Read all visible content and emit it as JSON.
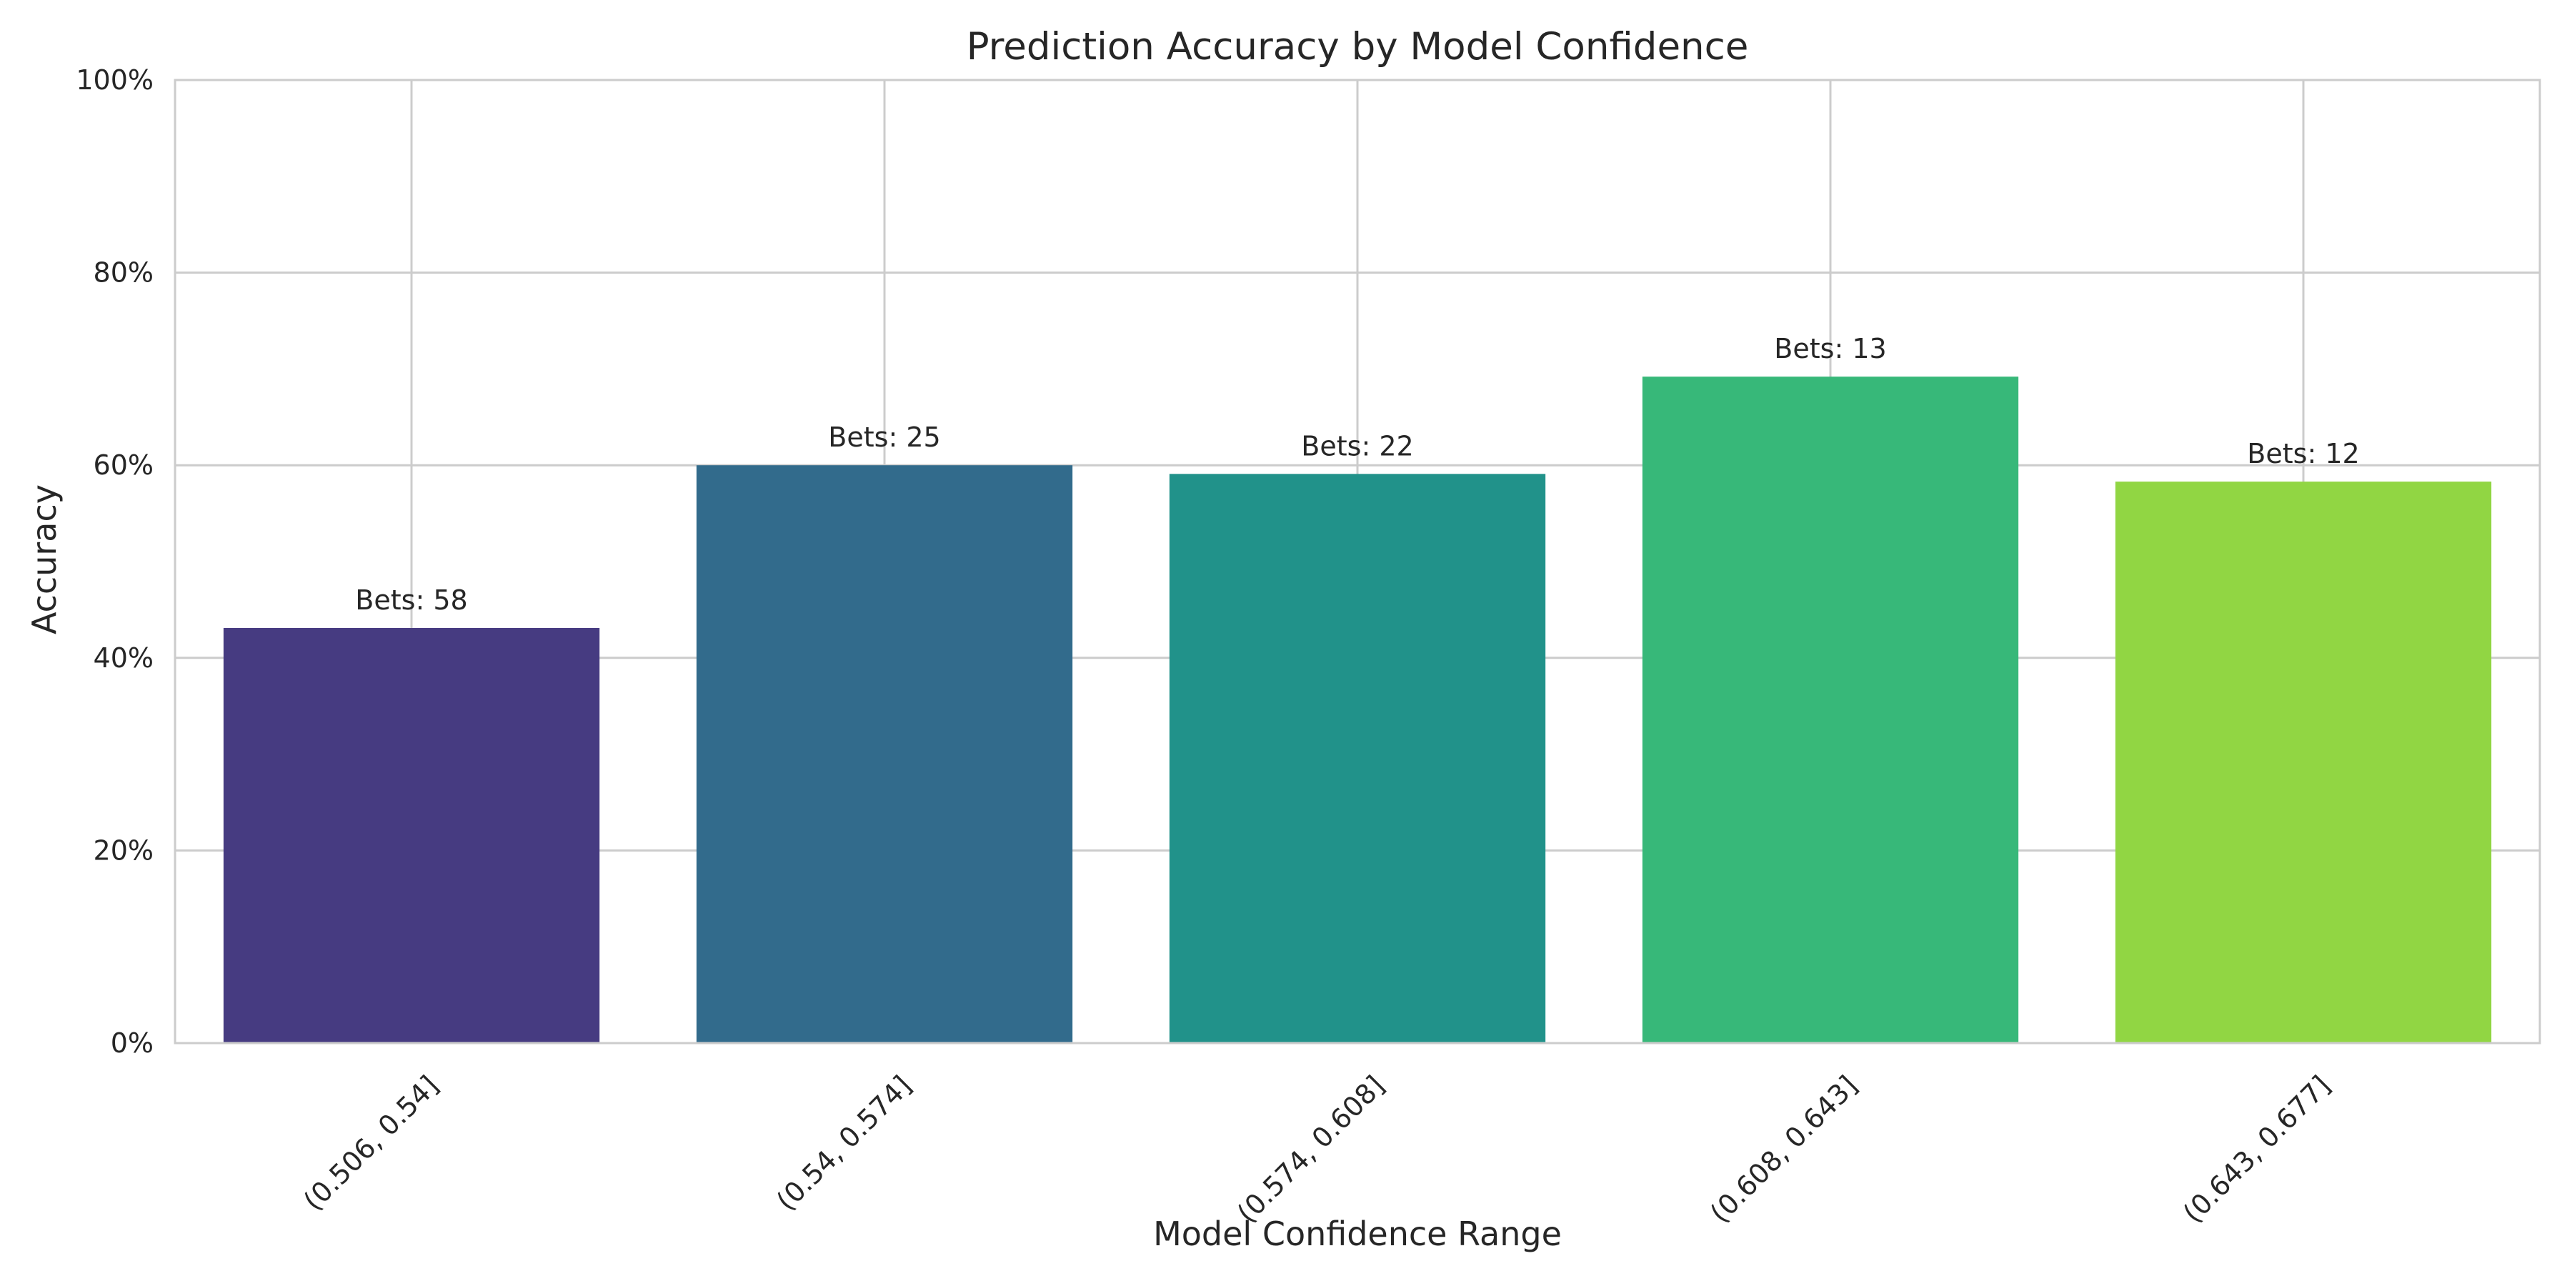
{
  "chart_data": {
    "type": "bar",
    "title": "Prediction Accuracy by Model Confidence",
    "xlabel": "Model Confidence Range",
    "ylabel": "Accuracy",
    "categories": [
      "(0.506, 0.54]",
      "(0.54, 0.574]",
      "(0.574, 0.608]",
      "(0.608, 0.643]",
      "(0.643, 0.677]"
    ],
    "values": [
      0.431,
      0.6,
      0.591,
      0.692,
      0.583
    ],
    "data_labels": [
      "Bets: 58",
      "Bets: 25",
      "Bets: 22",
      "Bets: 13",
      "Bets: 12"
    ],
    "colors": [
      "#463b81",
      "#326b8c",
      "#21928a",
      "#37b879",
      "#91d643"
    ],
    "ylim": [
      0,
      1
    ],
    "yticks": [
      0,
      0.2,
      0.4,
      0.6,
      0.8,
      1.0
    ],
    "ytick_labels": [
      "0%",
      "20%",
      "40%",
      "60%",
      "80%",
      "100%"
    ],
    "grid": true,
    "grid_color": "#cccccc",
    "legend": "none"
  }
}
